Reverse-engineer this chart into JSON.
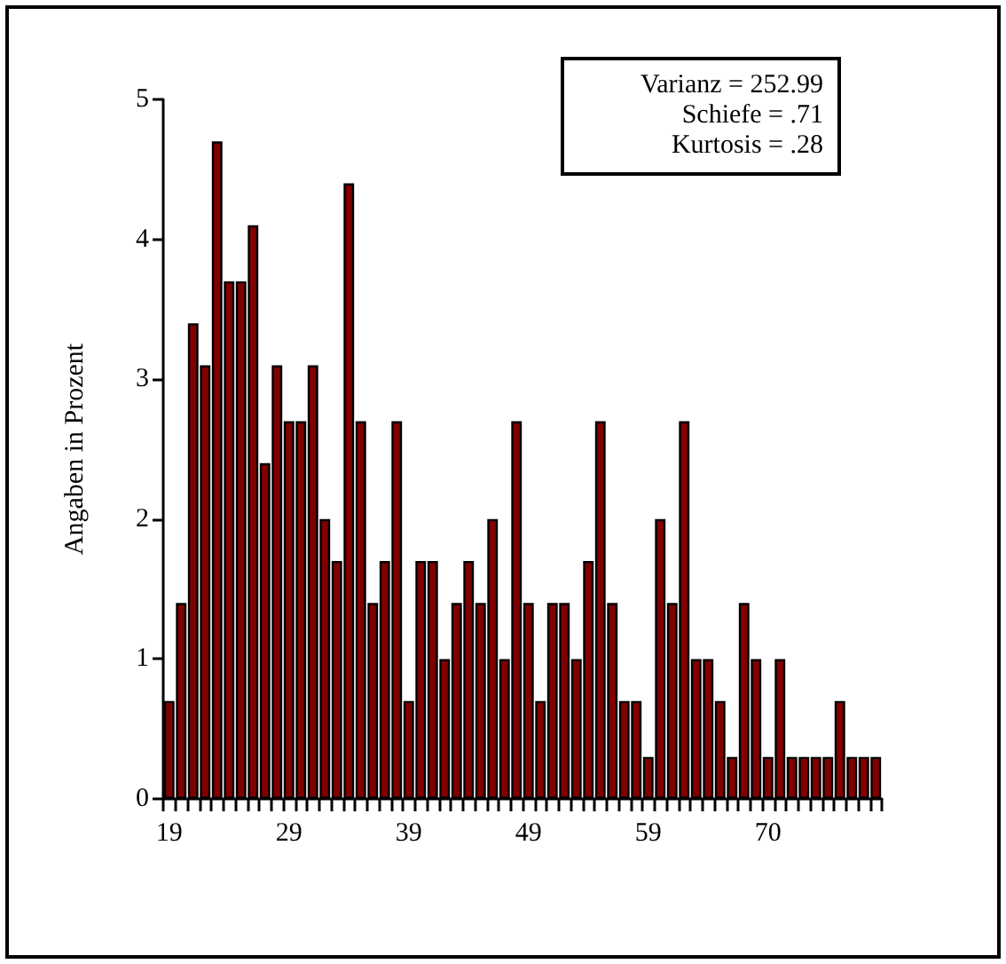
{
  "chart_data": {
    "type": "bar",
    "ylabel": "Angaben in Prozent",
    "categories": [
      "19",
      null,
      null,
      null,
      null,
      null,
      null,
      null,
      null,
      null,
      "29",
      null,
      null,
      null,
      null,
      null,
      null,
      null,
      null,
      null,
      "39",
      null,
      null,
      null,
      null,
      null,
      null,
      null,
      null,
      null,
      "49",
      null,
      null,
      null,
      null,
      null,
      null,
      null,
      null,
      null,
      "59",
      null,
      null,
      null,
      null,
      null,
      null,
      null,
      null,
      null,
      "70",
      null,
      null,
      null,
      null,
      null,
      null,
      null,
      null,
      null
    ],
    "values": [
      0.7,
      1.4,
      3.4,
      3.1,
      4.7,
      3.7,
      3.7,
      4.1,
      2.4,
      3.1,
      2.7,
      2.7,
      3.1,
      2.0,
      1.7,
      4.4,
      2.7,
      1.4,
      1.7,
      2.7,
      0.7,
      1.7,
      1.7,
      1.0,
      1.4,
      1.7,
      1.4,
      2.0,
      1.0,
      2.7,
      1.4,
      0.7,
      1.4,
      1.4,
      1.0,
      1.7,
      2.7,
      1.4,
      0.7,
      0.7,
      0.3,
      2.0,
      1.4,
      2.7,
      1.0,
      1.0,
      0.7,
      0.3,
      1.4,
      1.0,
      0.3,
      1.0,
      0.3,
      0.3,
      0.3,
      0.3,
      0.7,
      0.3,
      0.3,
      0.3
    ],
    "color": "#800000",
    "ylim": [
      0,
      5
    ],
    "yticks": [
      0,
      1,
      2,
      3,
      4,
      5
    ],
    "grid": false,
    "annotations": [
      "Varianz = 252.99",
      "Schiefe = .71",
      "Kurtosis = .28"
    ]
  }
}
